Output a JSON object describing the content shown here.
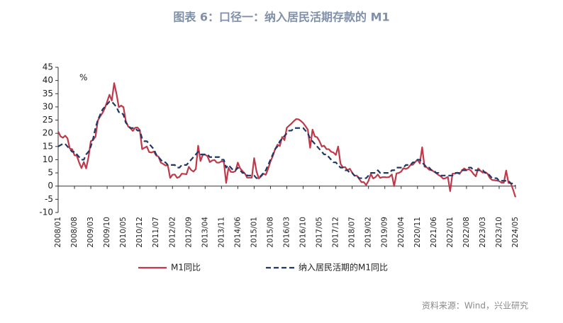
{
  "chart_data": {
    "type": "line",
    "title": "图表 6：口径一：纳入居民活期存款的 M1",
    "unit_label": "%",
    "source": "资料来源：Wind，兴业研究",
    "ylim": [
      -10,
      45
    ],
    "yticks": [
      -10,
      -5,
      0,
      5,
      10,
      15,
      20,
      25,
      30,
      35,
      40,
      45
    ],
    "categories": [
      "2008/01",
      null,
      null,
      null,
      null,
      null,
      null,
      "2008/08",
      null,
      null,
      null,
      null,
      null,
      null,
      "2009/03",
      null,
      null,
      null,
      null,
      null,
      null,
      "2009/10",
      null,
      null,
      null,
      null,
      null,
      null,
      "2010/05",
      null,
      null,
      null,
      null,
      null,
      null,
      "2010/12",
      null,
      null,
      null,
      null,
      null,
      null,
      "2011/07",
      null,
      null,
      null,
      null,
      null,
      null,
      "2012/02",
      null,
      null,
      null,
      null,
      null,
      null,
      "2012/09",
      null,
      null,
      null,
      null,
      null,
      null,
      "2013/04",
      null,
      null,
      null,
      null,
      null,
      null,
      "2013/11",
      null,
      null,
      null,
      null,
      null,
      null,
      "2014/06",
      null,
      null,
      null,
      null,
      null,
      null,
      "2015/01",
      null,
      null,
      null,
      null,
      null,
      null,
      "2015/08",
      null,
      null,
      null,
      null,
      null,
      null,
      "2016/03",
      null,
      null,
      null,
      null,
      null,
      null,
      "2016/10",
      null,
      null,
      null,
      null,
      null,
      null,
      "2017/05",
      null,
      null,
      null,
      null,
      null,
      null,
      "2017/12",
      null,
      null,
      null,
      null,
      null,
      null,
      "2018/07",
      null,
      null,
      null,
      null,
      null,
      null,
      "2019/02",
      null,
      null,
      null,
      null,
      null,
      null,
      "2019/09",
      null,
      null,
      null,
      null,
      null,
      null,
      "2020/04",
      null,
      null,
      null,
      null,
      null,
      null,
      "2020/11",
      null,
      null,
      null,
      null,
      null,
      null,
      "2021/06",
      null,
      null,
      null,
      null,
      null,
      null,
      "2022/01",
      null,
      null,
      null,
      null,
      null,
      null,
      "2022/08",
      null,
      null,
      null,
      null,
      null,
      null,
      "2023/03",
      null,
      null,
      null,
      null,
      null,
      null,
      "2023/10",
      null,
      null,
      null,
      null,
      null,
      null,
      "2024/05"
    ],
    "series": [
      {
        "name": "M1同比",
        "color": "#c0394b",
        "dash": false,
        "values": [
          20.7,
          18.9,
          18.3,
          19.1,
          18.1,
          14.2,
          14.0,
          11.7,
          11.5,
          8.9,
          6.8,
          9.1,
          6.7,
          10.9,
          17.0,
          17.5,
          18.7,
          24.8,
          26.4,
          27.7,
          29.5,
          32.0,
          34.6,
          32.4,
          39.0,
          35.0,
          29.9,
          30.5,
          29.9,
          24.6,
          22.6,
          21.9,
          20.9,
          22.1,
          22.2,
          21.2,
          14.0,
          14.5,
          15.0,
          12.9,
          12.7,
          13.1,
          11.6,
          11.2,
          8.9,
          8.4,
          7.8,
          7.9,
          3.1,
          4.3,
          4.4,
          3.1,
          3.5,
          4.7,
          4.6,
          4.5,
          7.3,
          6.1,
          5.5,
          6.5,
          15.3,
          9.5,
          11.9,
          11.9,
          11.3,
          9.1,
          9.7,
          9.9,
          8.9,
          8.9,
          9.4,
          9.3,
          1.2,
          6.9,
          5.4,
          5.3,
          5.7,
          8.9,
          6.7,
          5.7,
          4.8,
          3.2,
          3.2,
          3.2,
          10.6,
          5.6,
          2.9,
          3.7,
          4.7,
          4.3,
          6.6,
          9.3,
          11.4,
          14.0,
          15.7,
          15.2,
          18.6,
          17.4,
          22.1,
          22.9,
          23.7,
          24.6,
          25.4,
          25.3,
          24.7,
          23.9,
          22.7,
          21.4,
          14.5,
          21.4,
          18.8,
          18.5,
          17.0,
          15.0,
          15.3,
          14.0,
          14.0,
          13.0,
          12.7,
          11.8,
          15.0,
          8.5,
          7.1,
          7.2,
          6.0,
          6.6,
          5.1,
          3.9,
          4.0,
          2.7,
          1.5,
          1.5,
          0.4,
          2.0,
          4.6,
          2.9,
          3.4,
          4.4,
          3.1,
          3.4,
          3.4,
          3.3,
          3.5,
          4.4,
          0.0,
          4.8,
          5.0,
          5.5,
          6.8,
          6.5,
          6.9,
          8.0,
          8.1,
          9.1,
          10.0,
          8.6,
          14.7,
          7.4,
          7.1,
          6.2,
          6.1,
          5.5,
          4.9,
          4.2,
          3.7,
          2.8,
          3.0,
          3.5,
          -1.9,
          4.7,
          4.7,
          5.1,
          4.6,
          5.8,
          6.7,
          6.1,
          6.4,
          5.8,
          4.6,
          3.7,
          6.7,
          5.8,
          5.1,
          5.3,
          4.7,
          3.1,
          2.3,
          2.2,
          2.1,
          1.9,
          1.3,
          1.3,
          5.9,
          1.2,
          1.1,
          -1.4,
          -4.2
        ]
      },
      {
        "name": "纳入居民活期的M1同比",
        "color": "#1f3864",
        "dash": true,
        "values": [
          15,
          15.5,
          16,
          16,
          15,
          14,
          13,
          13,
          12,
          11,
          10,
          10,
          12,
          13,
          15,
          18,
          22,
          25,
          27,
          29,
          30,
          31,
          32,
          32,
          31,
          30,
          28,
          28,
          27,
          24,
          23,
          22,
          22,
          22,
          21,
          21,
          18,
          17,
          17,
          16,
          15,
          14,
          12,
          11,
          10,
          9,
          9,
          8,
          8,
          8,
          8,
          7,
          7,
          8,
          8,
          8,
          9,
          10,
          11,
          12,
          13,
          12,
          12,
          12,
          12,
          11,
          11,
          11,
          11,
          11,
          10,
          10,
          7,
          8,
          7,
          6,
          6,
          7,
          6,
          5,
          5,
          4,
          4,
          4,
          4,
          3,
          3,
          4,
          5,
          6,
          8,
          10,
          12,
          14,
          15,
          17,
          18,
          19,
          20,
          21,
          21,
          22,
          22,
          22,
          22,
          22,
          21,
          20,
          18,
          17,
          16,
          15,
          14,
          13,
          12,
          12,
          11,
          10,
          9,
          9,
          8,
          7,
          7,
          6,
          6,
          5,
          5,
          4,
          4,
          3,
          3,
          3,
          3,
          4,
          5,
          5,
          5,
          6,
          5,
          5,
          5,
          5,
          5,
          6,
          6,
          7,
          7,
          7,
          7,
          8,
          8,
          8,
          9,
          9,
          10,
          10,
          9,
          8,
          7,
          7,
          6,
          6,
          5,
          5,
          4,
          4,
          4,
          4,
          4,
          4,
          5,
          5,
          5,
          6,
          6,
          6,
          7,
          7,
          6,
          6,
          6,
          6,
          6,
          5,
          5,
          4,
          3,
          3,
          3,
          2,
          2,
          2,
          2,
          2,
          1,
          1,
          0
        ]
      }
    ]
  }
}
